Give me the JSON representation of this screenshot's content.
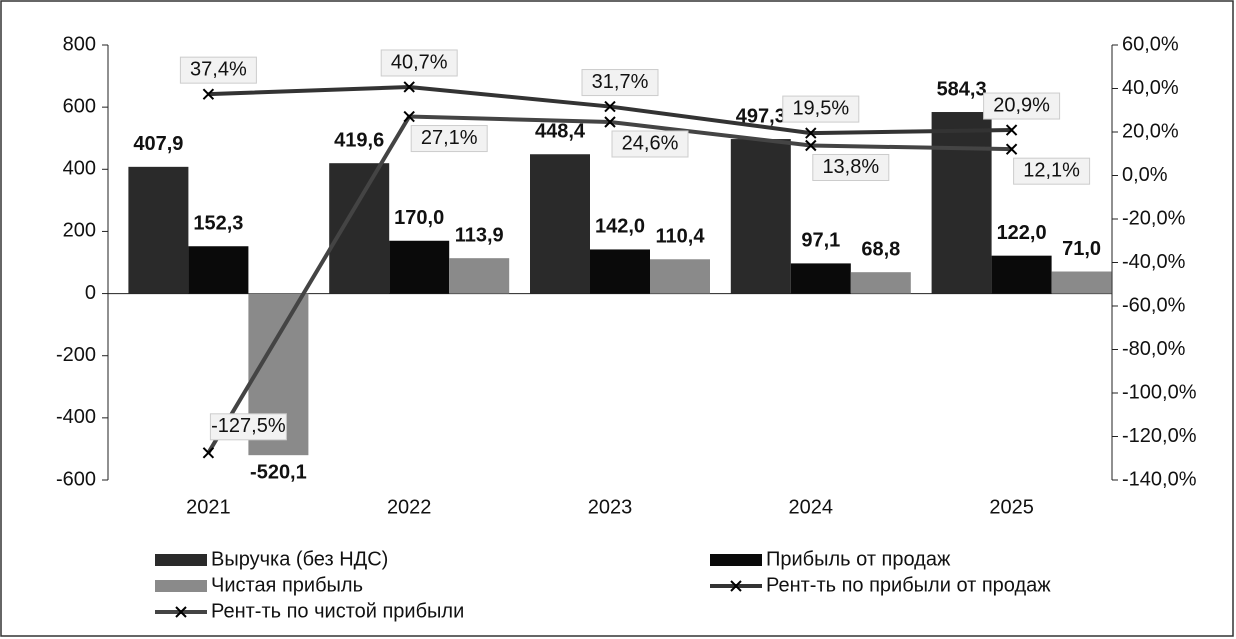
{
  "chart_data": {
    "type": "bar_line",
    "categories": [
      "2021",
      "2022",
      "2023",
      "2024",
      "2025"
    ],
    "ylim": [
      -600,
      800
    ],
    "yticks": [
      -600,
      -400,
      -200,
      0,
      200,
      400,
      600,
      800
    ],
    "y2lim": [
      -140,
      60
    ],
    "y2ticks": [
      {
        "value": -140,
        "label": "-140,0%"
      },
      {
        "value": -120,
        "label": "-120,0%"
      },
      {
        "value": -100,
        "label": "-100,0%"
      },
      {
        "value": -80,
        "label": "-80,0%"
      },
      {
        "value": -60,
        "label": "-60,0%"
      },
      {
        "value": -40,
        "label": "-40,0%"
      },
      {
        "value": -20,
        "label": "-20,0%"
      },
      {
        "value": 0,
        "label": "0,0%"
      },
      {
        "value": 20,
        "label": "20,0%"
      },
      {
        "value": 40,
        "label": "40,0%"
      },
      {
        "value": 60,
        "label": "60,0%"
      }
    ],
    "series": [
      {
        "name": "Выручка (без НДС)",
        "kind": "bar",
        "color": "#2a2a2a",
        "values": [
          407.9,
          419.6,
          448.4,
          497.3,
          584.3
        ],
        "value_labels": [
          "407,9",
          "419,6",
          "448,4",
          "497,3",
          "584,3"
        ]
      },
      {
        "name": "Прибыль от продаж",
        "kind": "bar",
        "color": "#0a0a0a",
        "values": [
          152.3,
          170.0,
          142.0,
          97.1,
          122.0
        ],
        "value_labels": [
          "152,3",
          "170,0",
          "142,0",
          "97,1",
          "122,0"
        ]
      },
      {
        "name": "Чистая прибыль",
        "kind": "bar",
        "color": "#8a8a8a",
        "values": [
          -520.1,
          113.9,
          110.4,
          68.8,
          71.0
        ],
        "value_labels": [
          "-520,1",
          "113,9",
          "110,4",
          "68,8",
          "71,0"
        ]
      },
      {
        "name": "Рент-ть по прибыли от продаж",
        "kind": "line",
        "axis": "y2",
        "color": "#333333",
        "values": [
          37.4,
          40.7,
          31.7,
          19.5,
          20.9
        ],
        "value_labels": [
          "37,4%",
          "40,7%",
          "31,7%",
          "19,5%",
          "20,9%"
        ]
      },
      {
        "name": "Рент-ть по чистой прибыли",
        "kind": "line",
        "axis": "y2",
        "color": "#444444",
        "values": [
          -127.5,
          27.1,
          24.6,
          13.8,
          12.1
        ],
        "value_labels": [
          "-127,5%",
          "27,1%",
          "24,6%",
          "13,8%",
          "12,1%"
        ]
      }
    ]
  }
}
